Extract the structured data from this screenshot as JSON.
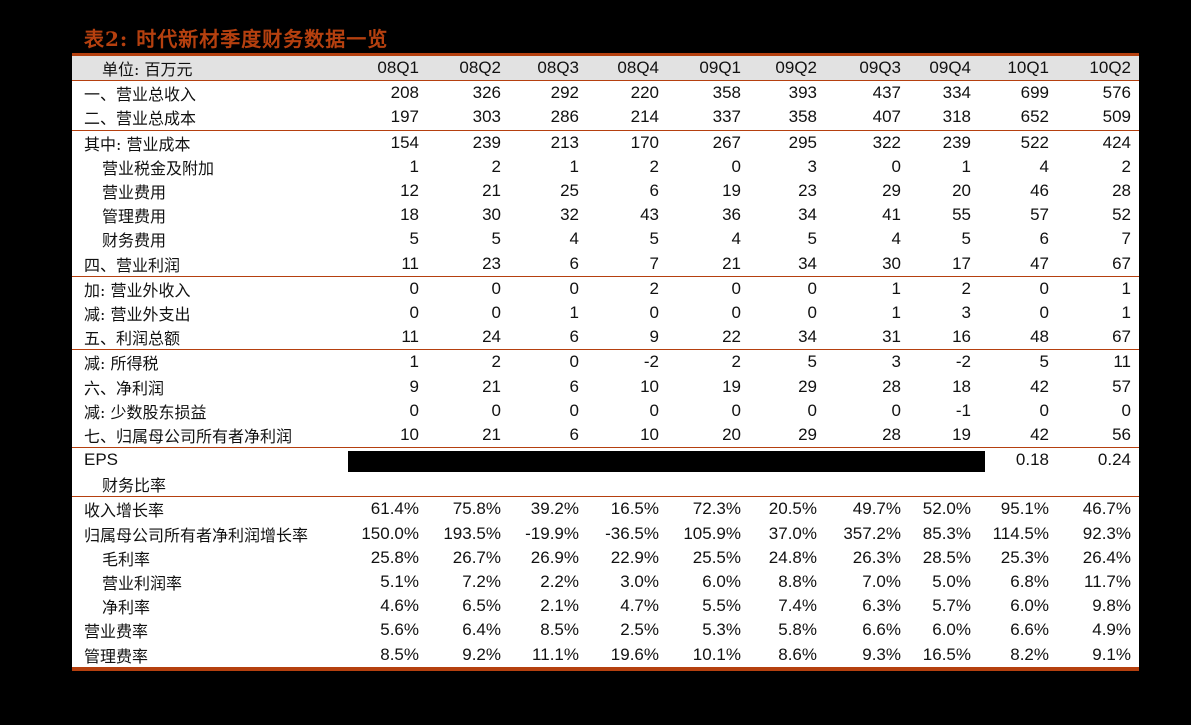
{
  "title": "表2: 时代新材季度财务数据一览",
  "table": {
    "unit_label": "单位: 百万元",
    "columns": [
      "08Q1",
      "08Q2",
      "08Q3",
      "08Q4",
      "09Q1",
      "09Q2",
      "09Q3",
      "09Q4",
      "10Q1",
      "10Q2"
    ],
    "rows": [
      {
        "label": "一、营业总收入",
        "indent": false,
        "sep": false,
        "values": [
          "208",
          "326",
          "292",
          "220",
          "358",
          "393",
          "437",
          "334",
          "699",
          "576"
        ]
      },
      {
        "label": "二、营业总成本",
        "indent": false,
        "sep": false,
        "values": [
          "197",
          "303",
          "286",
          "214",
          "337",
          "358",
          "407",
          "318",
          "652",
          "509"
        ]
      },
      {
        "label": "其中: 营业成本",
        "indent": false,
        "sep": true,
        "values": [
          "154",
          "239",
          "213",
          "170",
          "267",
          "295",
          "322",
          "239",
          "522",
          "424"
        ]
      },
      {
        "label": "营业税金及附加",
        "indent": true,
        "sep": false,
        "values": [
          "1",
          "2",
          "1",
          "2",
          "0",
          "3",
          "0",
          "1",
          "4",
          "2"
        ]
      },
      {
        "label": "营业费用",
        "indent": true,
        "sep": false,
        "values": [
          "12",
          "21",
          "25",
          "6",
          "19",
          "23",
          "29",
          "20",
          "46",
          "28"
        ]
      },
      {
        "label": "管理费用",
        "indent": true,
        "sep": false,
        "values": [
          "18",
          "30",
          "32",
          "43",
          "36",
          "34",
          "41",
          "55",
          "57",
          "52"
        ]
      },
      {
        "label": "财务费用",
        "indent": true,
        "sep": false,
        "values": [
          "5",
          "5",
          "4",
          "5",
          "4",
          "5",
          "4",
          "5",
          "6",
          "7"
        ]
      },
      {
        "label": "四、营业利润",
        "indent": false,
        "sep": false,
        "values": [
          "11",
          "23",
          "6",
          "7",
          "21",
          "34",
          "30",
          "17",
          "47",
          "67"
        ]
      },
      {
        "label": "加: 营业外收入",
        "indent": false,
        "sep": true,
        "values": [
          "0",
          "0",
          "0",
          "2",
          "0",
          "0",
          "1",
          "2",
          "0",
          "1"
        ]
      },
      {
        "label": "减: 营业外支出",
        "indent": false,
        "sep": false,
        "values": [
          "0",
          "0",
          "1",
          "0",
          "0",
          "0",
          "1",
          "3",
          "0",
          "1"
        ]
      },
      {
        "label": "五、利润总额",
        "indent": false,
        "sep": false,
        "values": [
          "11",
          "24",
          "6",
          "9",
          "22",
          "34",
          "31",
          "16",
          "48",
          "67"
        ]
      },
      {
        "label": "减: 所得税",
        "indent": false,
        "sep": true,
        "values": [
          "1",
          "2",
          "0",
          "-2",
          "2",
          "5",
          "3",
          "-2",
          "5",
          "11"
        ]
      },
      {
        "label": "六、净利润",
        "indent": false,
        "sep": false,
        "values": [
          "9",
          "21",
          "6",
          "10",
          "19",
          "29",
          "28",
          "18",
          "42",
          "57"
        ]
      },
      {
        "label": "减: 少数股东损益",
        "indent": false,
        "sep": false,
        "values": [
          "0",
          "0",
          "0",
          "0",
          "0",
          "0",
          "0",
          "-1",
          "0",
          "0"
        ]
      },
      {
        "label": "七、归属母公司所有者净利润",
        "indent": false,
        "sep": false,
        "values": [
          "10",
          "21",
          "6",
          "10",
          "20",
          "29",
          "28",
          "19",
          "42",
          "56"
        ]
      }
    ],
    "eps": {
      "label": "EPS",
      "values": [
        "",
        "",
        "",
        "",
        "",
        "",
        "",
        "",
        "0.18",
        "0.24"
      ],
      "redacted_columns": 8
    },
    "ratio_section_label": "财务比率",
    "ratio_rows": [
      {
        "label": "收入增长率",
        "indent": false,
        "sep": true,
        "values": [
          "61.4%",
          "75.8%",
          "39.2%",
          "16.5%",
          "72.3%",
          "20.5%",
          "49.7%",
          "52.0%",
          "95.1%",
          "46.7%"
        ]
      },
      {
        "label": "归属母公司所有者净利润增长率",
        "indent": false,
        "sep": false,
        "values": [
          "150.0%",
          "193.5%",
          "-19.9%",
          "-36.5%",
          "105.9%",
          "37.0%",
          "357.2%",
          "85.3%",
          "114.5%",
          "92.3%"
        ]
      },
      {
        "label": "毛利率",
        "indent": true,
        "sep": false,
        "values": [
          "25.8%",
          "26.7%",
          "26.9%",
          "22.9%",
          "25.5%",
          "24.8%",
          "26.3%",
          "28.5%",
          "25.3%",
          "26.4%"
        ]
      },
      {
        "label": "营业利润率",
        "indent": true,
        "sep": false,
        "values": [
          "5.1%",
          "7.2%",
          "2.2%",
          "3.0%",
          "6.0%",
          "8.8%",
          "7.0%",
          "5.0%",
          "6.8%",
          "11.7%"
        ]
      },
      {
        "label": "净利率",
        "indent": true,
        "sep": false,
        "values": [
          "4.6%",
          "6.5%",
          "2.1%",
          "4.7%",
          "5.5%",
          "7.4%",
          "6.3%",
          "5.7%",
          "6.0%",
          "9.8%"
        ]
      },
      {
        "label": "营业费率",
        "indent": false,
        "sep": false,
        "values": [
          "5.6%",
          "6.4%",
          "8.5%",
          "2.5%",
          "5.3%",
          "5.8%",
          "6.6%",
          "6.0%",
          "6.6%",
          "4.9%"
        ]
      },
      {
        "label": "管理费率",
        "indent": false,
        "sep": false,
        "values": [
          "8.5%",
          "9.2%",
          "11.1%",
          "19.6%",
          "10.1%",
          "8.6%",
          "9.3%",
          "16.5%",
          "8.2%",
          "9.1%"
        ]
      }
    ]
  },
  "colors": {
    "accent": "#b5400f",
    "header_bg": "#e2e2e2",
    "page_bg": "#000000"
  }
}
